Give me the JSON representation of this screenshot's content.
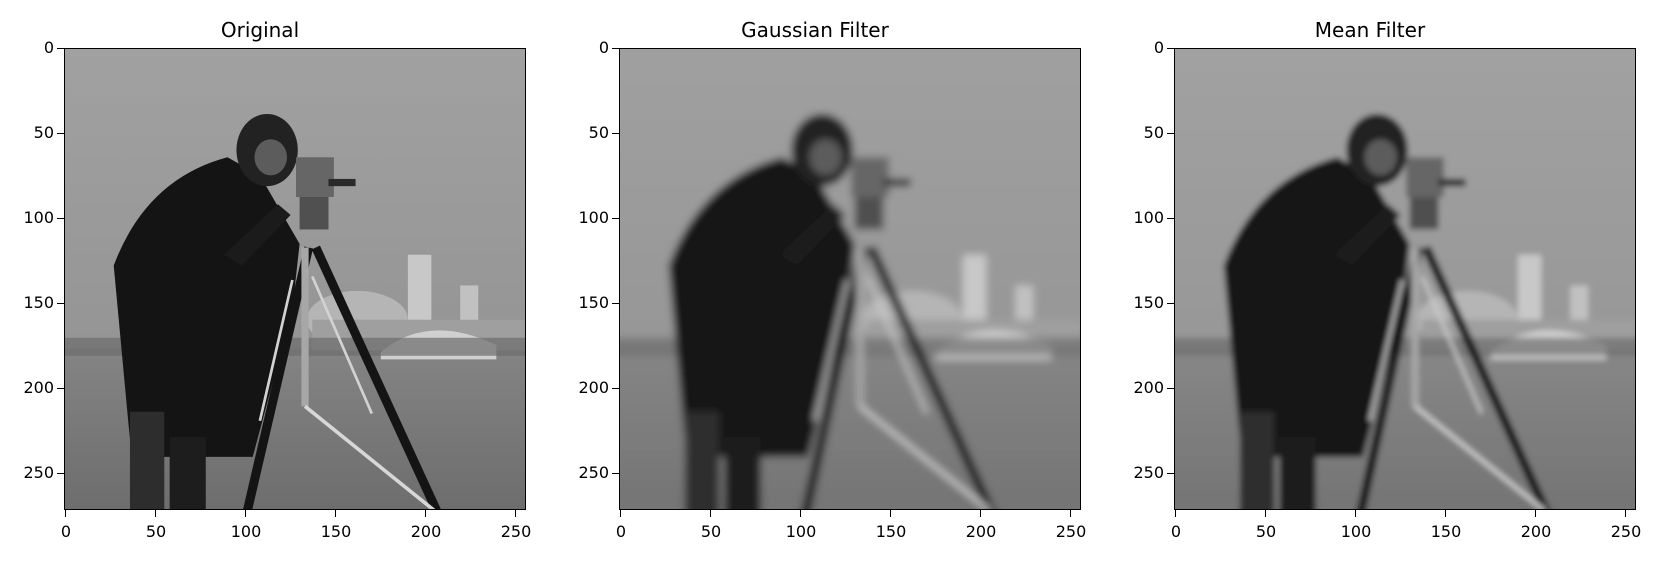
{
  "figure": {
    "panels": [
      {
        "title": "Original",
        "filter": "none"
      },
      {
        "title": "Gaussian Filter",
        "filter": "gaussian"
      },
      {
        "title": "Mean Filter",
        "filter": "mean"
      }
    ],
    "axes": {
      "y_ticks": [
        "0",
        "50",
        "100",
        "150",
        "200",
        "250"
      ],
      "x_ticks": [
        "0",
        "50",
        "100",
        "150",
        "200",
        "250"
      ],
      "range": [
        0,
        255
      ]
    },
    "colors": {
      "sky": "#9a9a9a",
      "ground": "#7a7a7a",
      "figure": "#151515",
      "buildings": "#c9c9c9"
    },
    "image_description": "grayscale cameraman photo"
  }
}
